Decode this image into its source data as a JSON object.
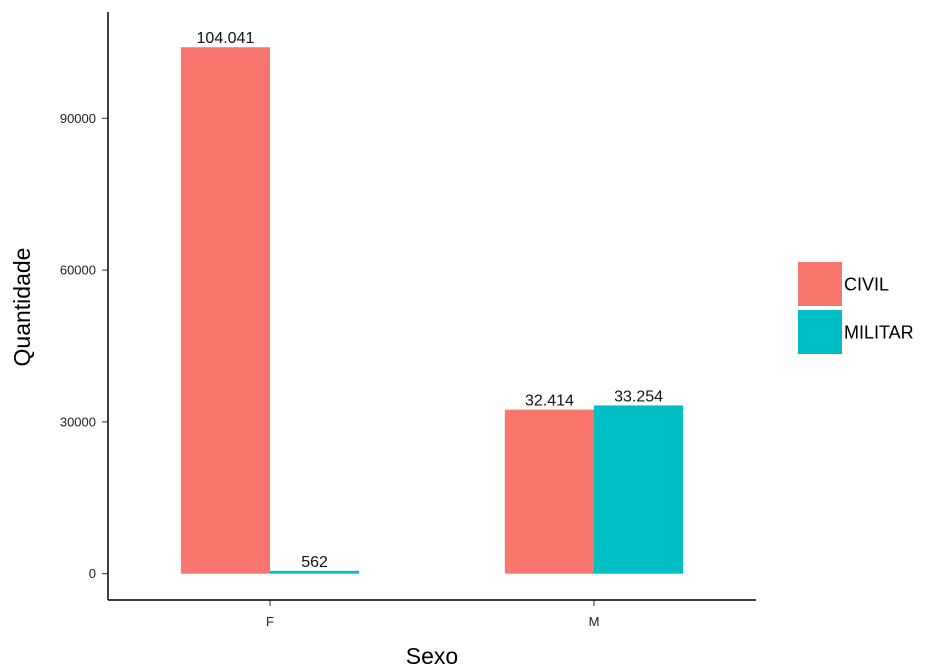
{
  "chart_data": {
    "type": "bar",
    "categories": [
      "F",
      "M"
    ],
    "series": [
      {
        "name": "CIVIL",
        "values": [
          104041,
          32414
        ],
        "labels": [
          "104.041",
          "32.414"
        ],
        "color": "#F8766D"
      },
      {
        "name": "MILITAR",
        "values": [
          562,
          33254
        ],
        "labels": [
          "562",
          "33.254"
        ],
        "color": "#00BFC4"
      }
    ],
    "xlabel": "Sexo",
    "ylabel": "Quantidade",
    "ylim": [
      -5200,
      111000
    ],
    "yticks": [
      0,
      30000,
      60000,
      90000
    ],
    "grid": false,
    "legend_position": "right"
  }
}
